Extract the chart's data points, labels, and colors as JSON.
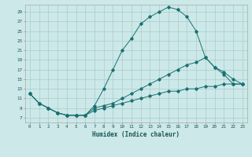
{
  "xlabel": "Humidex (Indice chaleur)",
  "background_color": "#cce8e8",
  "line_color": "#1a7070",
  "grid_color": "#aacccc",
  "yticks": [
    7,
    9,
    11,
    13,
    15,
    17,
    19,
    21,
    23,
    25,
    27,
    29
  ],
  "xticks": [
    0,
    1,
    2,
    3,
    4,
    5,
    6,
    7,
    8,
    9,
    10,
    11,
    12,
    13,
    14,
    15,
    16,
    17,
    18,
    19,
    20,
    21,
    22,
    23
  ],
  "xlim": [
    -0.5,
    23.5
  ],
  "ylim": [
    6.0,
    30.5
  ],
  "line1_x": [
    0,
    1,
    2,
    3,
    4,
    5,
    6,
    7,
    8,
    9,
    10,
    11,
    12,
    13,
    14,
    15,
    16,
    17,
    18,
    19,
    20,
    21,
    22,
    23
  ],
  "line1_y": [
    12,
    10,
    9,
    8,
    7.5,
    7.5,
    7.5,
    9.5,
    13,
    17,
    21,
    23.5,
    26.5,
    28,
    29,
    30,
    29.5,
    28,
    25,
    19.5,
    17.5,
    16,
    14,
    14
  ],
  "line2_x": [
    0,
    1,
    2,
    3,
    4,
    5,
    6,
    7,
    8,
    9,
    10,
    11,
    12,
    13,
    14,
    15,
    16,
    17,
    18,
    19,
    20,
    21,
    22,
    23
  ],
  "line2_y": [
    12,
    10,
    9,
    8,
    7.5,
    7.5,
    7.5,
    9,
    9.5,
    10,
    11,
    12,
    13,
    14,
    15,
    16,
    17,
    18,
    18.5,
    19.5,
    17.5,
    16.5,
    15,
    14
  ],
  "line3_x": [
    0,
    1,
    2,
    3,
    4,
    5,
    6,
    7,
    8,
    9,
    10,
    11,
    12,
    13,
    14,
    15,
    16,
    17,
    18,
    19,
    20,
    21,
    22,
    23
  ],
  "line3_y": [
    12,
    10,
    9,
    8,
    7.5,
    7.5,
    7.5,
    8.5,
    9,
    9.5,
    10,
    10.5,
    11,
    11.5,
    12,
    12.5,
    12.5,
    13,
    13,
    13.5,
    13.5,
    14,
    14,
    14
  ]
}
